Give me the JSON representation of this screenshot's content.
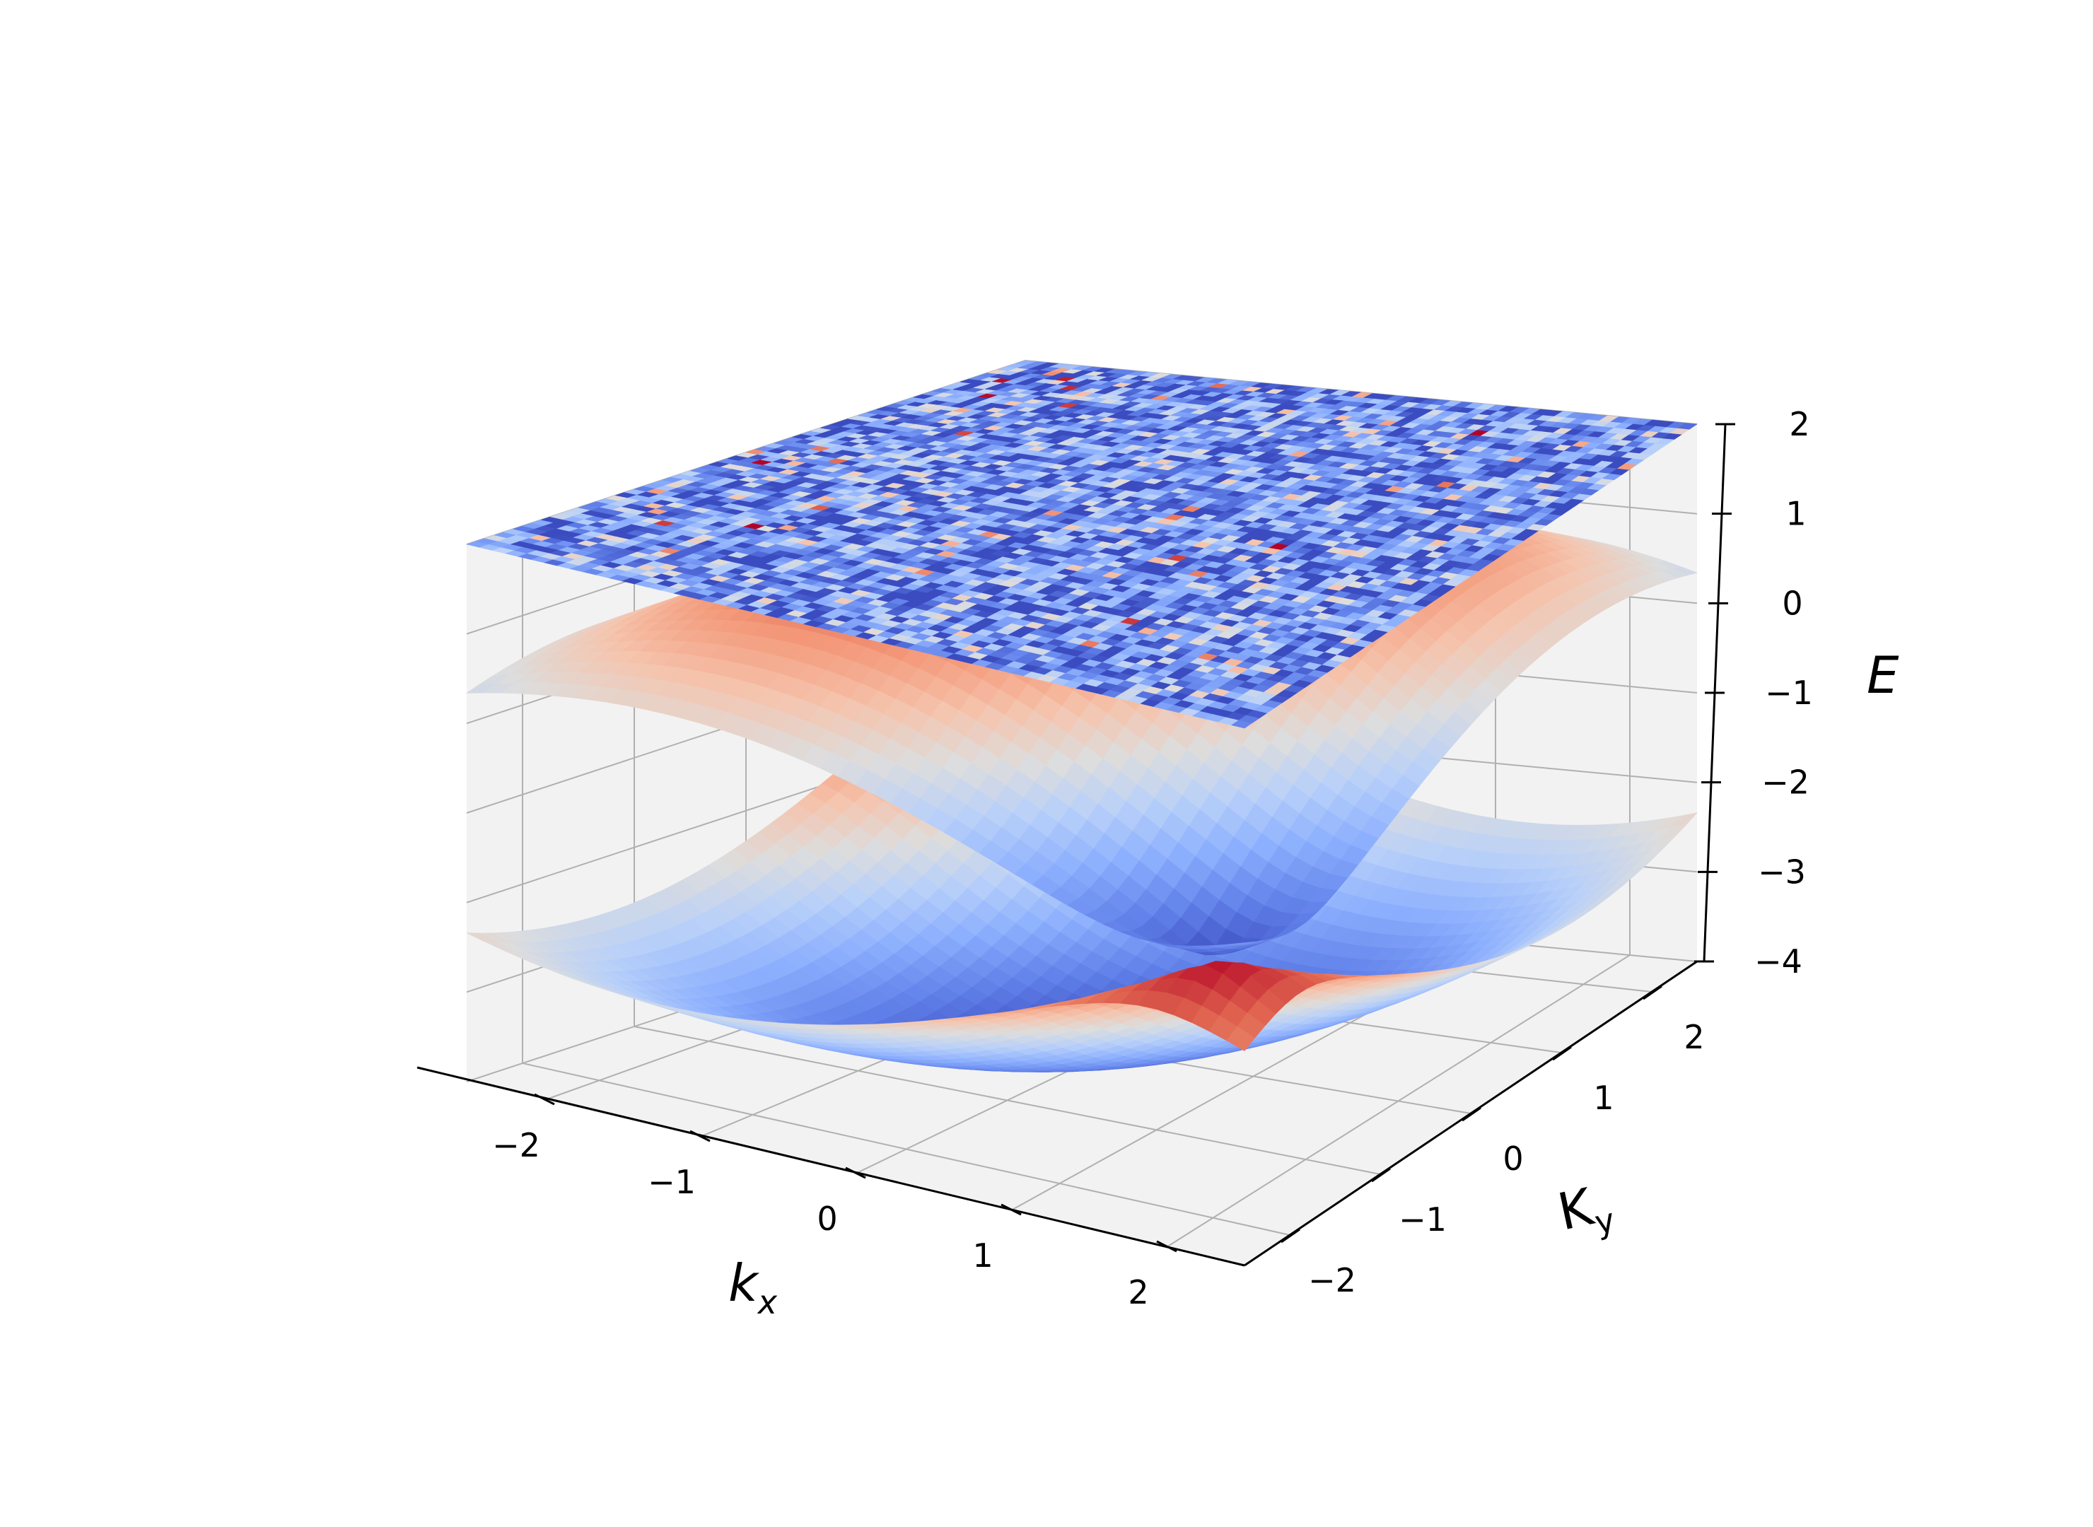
{
  "chart_data": {
    "type": "surface3d",
    "title": "",
    "xlabel": "k",
    "xlabel_sub": "x",
    "ylabel": "K",
    "ylabel_sub": "y",
    "zlabel": "E",
    "xlim": [
      -2.5,
      2.5
    ],
    "ylim": [
      -2.5,
      2.5
    ],
    "zlim": [
      -4,
      2
    ],
    "x_ticks": [
      -2,
      -1,
      0,
      1,
      2
    ],
    "y_ticks": [
      -2,
      -1,
      0,
      1,
      2
    ],
    "z_ticks": [
      -4,
      -3,
      -2,
      -1,
      0,
      1,
      2
    ],
    "x_tick_labels": [
      "−2",
      "−1",
      "0",
      "1",
      "2"
    ],
    "y_tick_labels": [
      "−2",
      "−1",
      "0",
      "1",
      "2"
    ],
    "z_tick_labels": [
      "−4",
      "−3",
      "−2",
      "−1",
      "0",
      "1",
      "2"
    ],
    "colormap": "coolwarm",
    "grid": true,
    "series": [
      {
        "surface": "upper_band",
        "formula": "E = -1 + |1 + e^{i k_x} + e^{i k_y}|",
        "z_range": [
          -1,
          2
        ]
      },
      {
        "surface": "lower_band",
        "formula": "E = -1 - |1 + e^{i k_x} + e^{i k_y}|",
        "z_range": [
          -4,
          -1
        ]
      },
      {
        "surface": "random_plane",
        "z_level": 2,
        "description": "flat plane at E = 2 with random coolwarm colored cells"
      }
    ],
    "colors": {
      "pane": "#f2f2f2",
      "grid": "#b0b0b0",
      "cool": "#3b4cc0",
      "warm": "#b40426"
    }
  }
}
